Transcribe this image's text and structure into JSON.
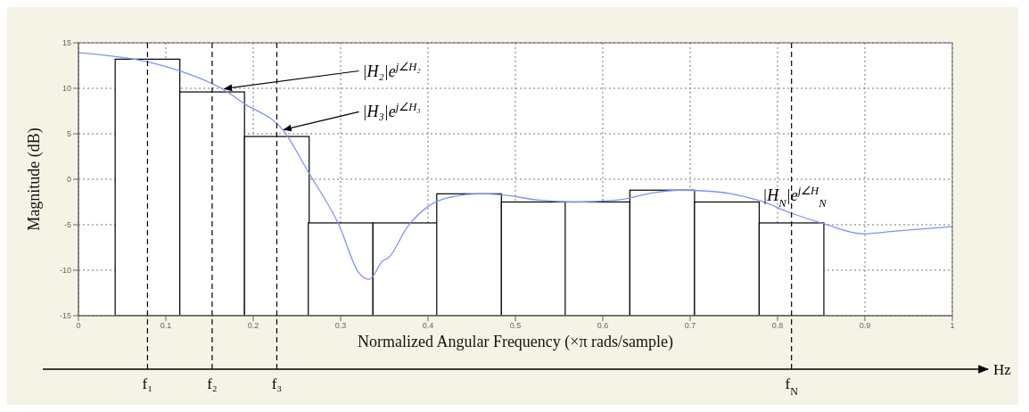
{
  "chart_data": {
    "type": "bar",
    "xlabel": "Normalized Angular Frequency  (×π rads/sample)",
    "ylabel": "Magnitude (dB)",
    "xlim": [
      0,
      1
    ],
    "xticks": [
      0,
      0.1,
      0.2,
      0.3,
      0.4,
      0.5,
      0.6,
      0.7,
      0.8,
      0.9,
      1
    ],
    "ylim": [
      -15,
      15
    ],
    "yticks": [
      -15,
      -10,
      -5,
      0,
      5,
      10,
      15
    ],
    "grid": true,
    "series": [
      {
        "color": "#ffffff",
        "x": [
          0.079,
          0.153,
          0.227,
          0.3,
          0.374,
          0.447,
          0.521,
          0.594,
          0.668,
          0.742,
          0.816
        ],
        "base": [
          -15,
          -15,
          -15,
          -15,
          -15,
          -15,
          -15,
          -15,
          -15,
          -15,
          -15
        ],
        "values": [
          28.2,
          24.6,
          19.7,
          10.2,
          10.2,
          13.4,
          12.5,
          12.5,
          13.8,
          12.5,
          10.2
        ]
      },
      {
        "type": "line",
        "color": "#8090ff",
        "x": [
          0,
          0.079,
          0.116,
          0.167,
          0.19,
          0.235,
          0.263,
          0.298,
          0.321,
          0.333,
          0.348,
          0.355,
          0.376,
          0.4,
          0.424,
          0.458,
          0.484,
          0.527,
          0.568,
          0.616,
          0.657,
          0.688,
          0.719,
          0.747,
          0.781,
          0.815,
          0.853,
          0.898,
          0.935,
          1
        ],
        "values": [
          13.9,
          12.9,
          11.9,
          9.8,
          8.3,
          5.3,
          0.8,
          -5,
          -10.3,
          -11,
          -9,
          -8.6,
          -5.3,
          -3,
          -2,
          -1.6,
          -1.7,
          -2.3,
          -2.5,
          -2.3,
          -1.5,
          -1.2,
          -1.3,
          -1.6,
          -2.4,
          -3.7,
          -4.9,
          -6,
          -5.7,
          -5.2
        ]
      }
    ],
    "ref_lines": [
      {
        "axis": "x",
        "value": 0.079,
        "label": "f₁",
        "line_style": "dashed",
        "color": "#000000"
      },
      {
        "axis": "x",
        "value": 0.153,
        "label": "f₂",
        "line_style": "dashed",
        "color": "#000000"
      },
      {
        "axis": "x",
        "value": 0.227,
        "label": "f₃",
        "line_style": "dashed",
        "color": "#000000"
      },
      {
        "axis": "x",
        "value": 0.816,
        "label": "f$_{N}$",
        "line_style": "dashed",
        "color": "#000000"
      }
    ],
    "annotations": [
      {
        "text": "|H₂|e$^{j∠H₂}$",
        "x": 0.167,
        "y": 9.95
      },
      {
        "text": "|H₃|e$^{j∠H₃}$",
        "x": 0.235,
        "y": 5.45
      },
      "|H$_{N}$|e$^{j∠H}$$_{N}$",
      "Hz"
    ]
  }
}
